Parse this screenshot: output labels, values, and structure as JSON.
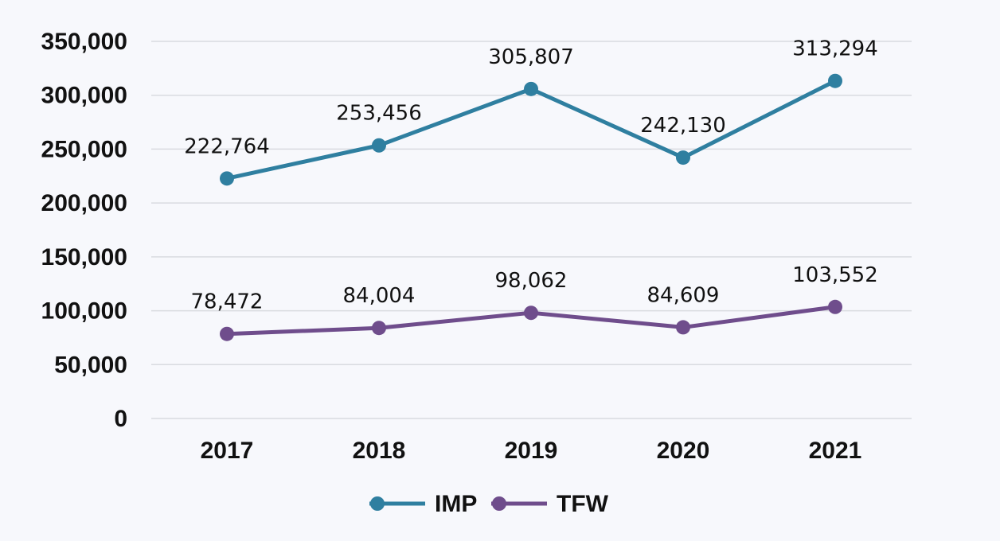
{
  "chart_data": {
    "type": "line",
    "categories": [
      "2017",
      "2018",
      "2019",
      "2020",
      "2021"
    ],
    "series": [
      {
        "name": "IMP",
        "values": [
          222764,
          253456,
          305807,
          242130,
          313294
        ],
        "labels": [
          "222,764",
          "253,456",
          "305,807",
          "242,130",
          "313,294"
        ],
        "color": "#2f7fa0"
      },
      {
        "name": "TFW",
        "values": [
          78472,
          84004,
          98062,
          84609,
          103552
        ],
        "labels": [
          "78,472",
          "84,004",
          "98,062",
          "84,609",
          "103,552"
        ],
        "color": "#6f4d8c"
      }
    ],
    "yticks": [
      "0",
      "50,000",
      "100,000",
      "150,000",
      "200,000",
      "250,000",
      "300,000",
      "350,000"
    ],
    "ylim": [
      0,
      350000
    ],
    "grid": true,
    "legend": "bottom-center"
  }
}
